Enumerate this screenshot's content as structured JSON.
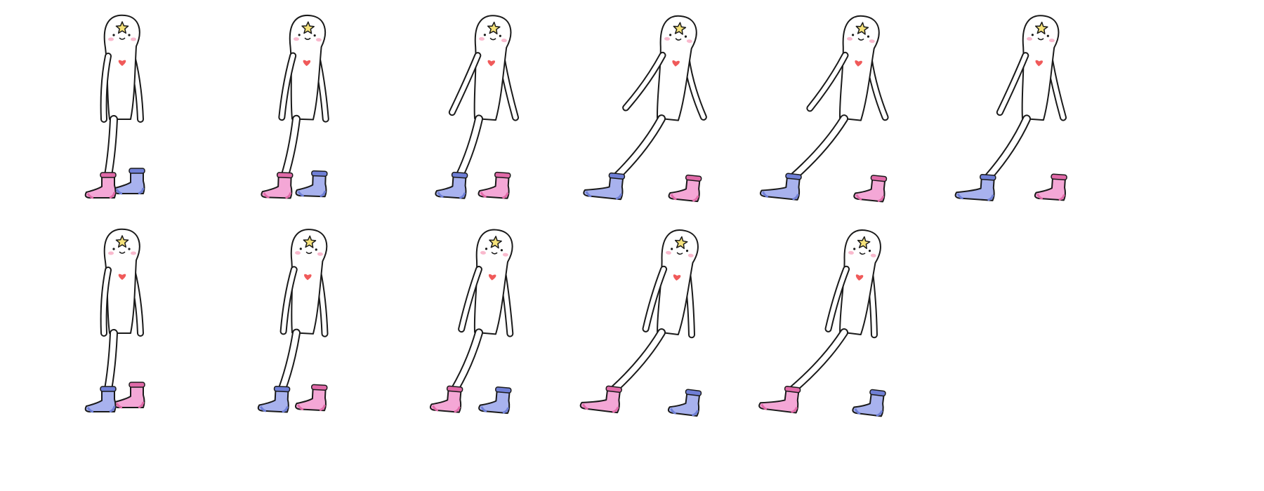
{
  "sheet": {
    "background": "#ffffff",
    "rows": 2,
    "columns": 6,
    "frame_count": 11
  },
  "colors": {
    "outline": "#1a1a1a",
    "body": "#ffffff",
    "star": "#f5e27a",
    "heart": "#f05a5a",
    "blush": "#f7a8c0",
    "sock_pink": "#f4a7d6",
    "sock_pink_cuff": "#e06aa8",
    "sock_blue": "#a8b2ee",
    "sock_blue_cuff": "#6f7fd6"
  },
  "frames": [
    {
      "id": 1,
      "row": 1,
      "col": 1,
      "front_leg": 0.0,
      "arm_swing": 0.0,
      "lean": 0,
      "front_sock": "pink",
      "back_sock": "blue",
      "back_foot_lift": 1
    },
    {
      "id": 2,
      "row": 1,
      "col": 2,
      "front_leg": 0.1,
      "arm_swing": 0.15,
      "lean": 2,
      "front_sock": "pink",
      "back_sock": "blue",
      "back_foot_lift": 0.5
    },
    {
      "id": 3,
      "row": 1,
      "col": 3,
      "front_leg": 0.25,
      "arm_swing": 0.55,
      "lean": 4,
      "front_sock": "blue",
      "back_sock": "pink",
      "back_foot_lift": 0.3
    },
    {
      "id": 4,
      "row": 1,
      "col": 4,
      "front_leg": 0.85,
      "arm_swing": 0.85,
      "lean": 6,
      "front_sock": "blue",
      "back_sock": "pink",
      "back_foot_lift": 0
    },
    {
      "id": 5,
      "row": 1,
      "col": 5,
      "front_leg": 1.0,
      "arm_swing": 0.8,
      "lean": 6,
      "front_sock": "blue",
      "back_sock": "pink",
      "back_foot_lift": 0
    },
    {
      "id": 6,
      "row": 1,
      "col": 6,
      "front_leg": 0.75,
      "arm_swing": 0.55,
      "lean": 4,
      "front_sock": "blue",
      "back_sock": "pink",
      "back_foot_lift": 0
    },
    {
      "id": 7,
      "row": 2,
      "col": 1,
      "front_leg": 0.0,
      "arm_swing": 0.0,
      "lean": 0,
      "front_sock": "blue",
      "back_sock": "pink",
      "back_foot_lift": 1
    },
    {
      "id": 8,
      "row": 2,
      "col": 2,
      "front_leg": 0.15,
      "arm_swing": 0.1,
      "lean": 3,
      "front_sock": "blue",
      "back_sock": "pink",
      "back_foot_lift": 0.6
    },
    {
      "id": 9,
      "row": 2,
      "col": 3,
      "front_leg": 0.35,
      "arm_swing": 0.25,
      "lean": 5,
      "front_sock": "pink",
      "back_sock": "blue",
      "back_foot_lift": 0.2
    },
    {
      "id": 10,
      "row": 2,
      "col": 4,
      "front_leg": 0.9,
      "arm_swing": 0.2,
      "lean": 7,
      "front_sock": "pink",
      "back_sock": "blue",
      "back_foot_lift": 0
    },
    {
      "id": 11,
      "row": 2,
      "col": 5,
      "front_leg": 1.0,
      "arm_swing": 0.2,
      "lean": 7,
      "front_sock": "pink",
      "back_sock": "blue",
      "back_foot_lift": 0
    }
  ]
}
